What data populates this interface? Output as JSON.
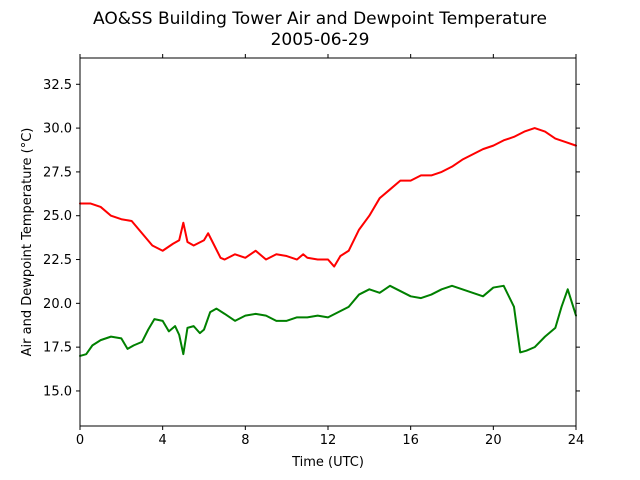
{
  "chart_data": {
    "type": "line",
    "title": "AO&SS Building Tower Air and Dewpoint Temperature",
    "subtitle": "2005-06-29",
    "xlabel": "Time (UTC)",
    "ylabel": "Air and Dewpoint Temperature (°C)",
    "xlim": [
      0,
      24
    ],
    "ylim": [
      13.0,
      34.0
    ],
    "x_ticks": [
      0,
      4,
      8,
      12,
      16,
      20,
      24
    ],
    "y_ticks": [
      15.0,
      17.5,
      20.0,
      22.5,
      25.0,
      27.5,
      30.0,
      32.5
    ],
    "grid": false,
    "legend": "none",
    "series": [
      {
        "color": "#ff0000",
        "x": [
          0,
          0.5,
          1,
          1.5,
          2,
          2.5,
          3,
          3.5,
          4,
          4.5,
          4.8,
          5,
          5.2,
          5.5,
          6,
          6.2,
          6.5,
          6.8,
          7,
          7.5,
          8,
          8.5,
          9,
          9.5,
          10,
          10.5,
          10.8,
          11,
          11.5,
          12,
          12.3,
          12.6,
          13,
          13.5,
          14,
          14.5,
          15,
          15.5,
          16,
          16.5,
          17,
          17.5,
          18,
          18.5,
          19,
          19.5,
          20,
          20.5,
          21,
          21.5,
          22,
          22.5,
          23,
          23.5,
          24
        ],
        "values": [
          25.7,
          25.7,
          25.5,
          25.0,
          24.8,
          24.7,
          24.0,
          23.3,
          23.0,
          23.4,
          23.6,
          24.6,
          23.5,
          23.3,
          23.6,
          24.0,
          23.3,
          22.6,
          22.5,
          22.8,
          22.6,
          23.0,
          22.5,
          22.8,
          22.7,
          22.5,
          22.8,
          22.6,
          22.5,
          22.5,
          22.1,
          22.7,
          23.0,
          24.2,
          25.0,
          26.0,
          26.5,
          27.0,
          27.0,
          27.3,
          27.3,
          27.5,
          27.8,
          28.2,
          28.5,
          28.8,
          29.0,
          29.3,
          29.5,
          29.8,
          30.0,
          29.8,
          29.4,
          29.2,
          29.0
        ]
      },
      {
        "color": "#008000",
        "x": [
          0,
          0.3,
          0.6,
          1,
          1.5,
          2,
          2.3,
          2.6,
          3,
          3.3,
          3.6,
          4,
          4.3,
          4.6,
          4.8,
          5,
          5.2,
          5.5,
          5.8,
          6,
          6.3,
          6.6,
          7,
          7.5,
          8,
          8.5,
          9,
          9.5,
          10,
          10.5,
          11,
          11.5,
          12,
          12.5,
          13,
          13.5,
          14,
          14.5,
          15,
          15.5,
          16,
          16.5,
          17,
          17.5,
          18,
          18.5,
          19,
          19.5,
          20,
          20.5,
          21,
          21.3,
          21.6,
          22,
          22.5,
          23,
          23.3,
          23.6,
          24
        ],
        "values": [
          17.0,
          17.1,
          17.6,
          17.9,
          18.1,
          18.0,
          17.4,
          17.6,
          17.8,
          18.5,
          19.1,
          19.0,
          18.4,
          18.7,
          18.2,
          17.1,
          18.6,
          18.7,
          18.3,
          18.5,
          19.5,
          19.7,
          19.4,
          19.0,
          19.3,
          19.4,
          19.3,
          19.0,
          19.0,
          19.2,
          19.2,
          19.3,
          19.2,
          19.5,
          19.8,
          20.5,
          20.8,
          20.6,
          21.0,
          20.7,
          20.4,
          20.3,
          20.5,
          20.8,
          21.0,
          20.8,
          20.6,
          20.4,
          20.9,
          21.0,
          19.8,
          17.2,
          17.3,
          17.5,
          18.1,
          18.6,
          19.8,
          20.8,
          19.3
        ]
      }
    ]
  }
}
